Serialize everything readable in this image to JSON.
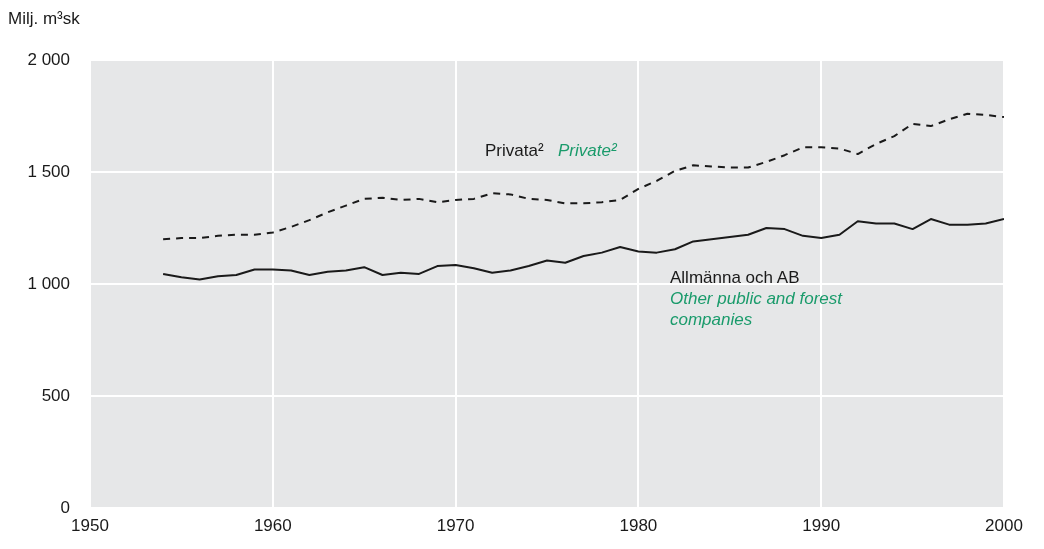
{
  "chart_data": {
    "type": "line",
    "ylabel": "Milj. m³sk",
    "x": [
      1954,
      1955,
      1956,
      1957,
      1958,
      1959,
      1960,
      1961,
      1962,
      1963,
      1964,
      1965,
      1966,
      1967,
      1968,
      1969,
      1970,
      1971,
      1972,
      1973,
      1974,
      1975,
      1976,
      1977,
      1978,
      1979,
      1980,
      1981,
      1982,
      1983,
      1984,
      1985,
      1986,
      1987,
      1988,
      1989,
      1990,
      1991,
      1992,
      1993,
      1994,
      1995,
      1996,
      1997,
      1998,
      1999,
      2000
    ],
    "series": [
      {
        "name": "Privata²",
        "color": "#1a1a1a",
        "line_style": "dashed",
        "values": [
          1200,
          1205,
          1205,
          1215,
          1220,
          1220,
          1230,
          1255,
          1285,
          1320,
          1350,
          1380,
          1385,
          1375,
          1380,
          1365,
          1375,
          1380,
          1405,
          1400,
          1380,
          1375,
          1360,
          1360,
          1365,
          1375,
          1425,
          1460,
          1505,
          1530,
          1525,
          1520,
          1520,
          1545,
          1575,
          1610,
          1610,
          1605,
          1580,
          1625,
          1660,
          1715,
          1705,
          1735,
          1760,
          1755,
          1745
        ]
      },
      {
        "name": "Allmänna och AB",
        "color": "#1a1a1a",
        "line_style": "solid",
        "values": [
          1045,
          1030,
          1020,
          1035,
          1040,
          1065,
          1065,
          1060,
          1040,
          1055,
          1060,
          1075,
          1040,
          1050,
          1045,
          1080,
          1085,
          1070,
          1050,
          1060,
          1080,
          1105,
          1095,
          1125,
          1140,
          1165,
          1145,
          1140,
          1155,
          1190,
          1200,
          1210,
          1220,
          1250,
          1245,
          1215,
          1205,
          1220,
          1280,
          1270,
          1270,
          1245,
          1290,
          1265,
          1265,
          1270,
          1290
        ]
      }
    ],
    "annotations": [
      "Private²",
      "Other public and forest companies"
    ],
    "xlim": [
      1950,
      2000
    ],
    "xticks": [
      1950,
      1960,
      1970,
      1980,
      1990,
      2000
    ],
    "ylim": [
      0,
      2000
    ],
    "yticks": [
      0,
      {
        "value": 500,
        "label": "500"
      },
      {
        "value": 1000,
        "label": "1 000"
      },
      {
        "value": 1500,
        "label": "1 500"
      },
      {
        "value": 2000,
        "label": "2 000"
      }
    ],
    "grid": true,
    "legend": false,
    "marker": "none"
  }
}
